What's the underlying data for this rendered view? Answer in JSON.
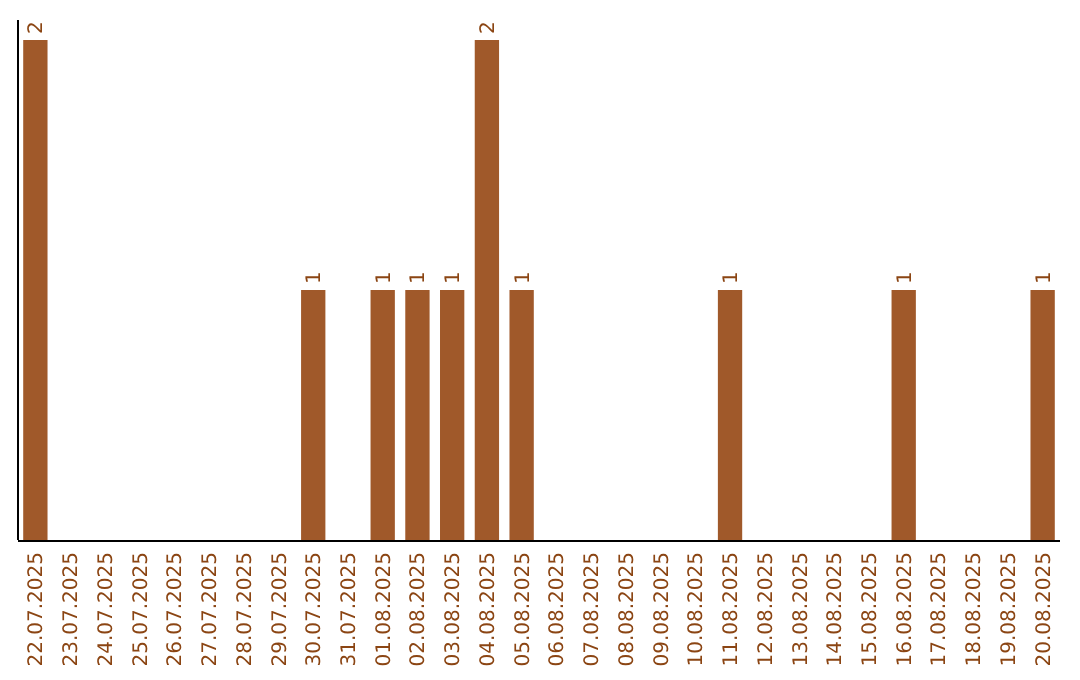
{
  "chart_data": {
    "type": "bar",
    "categories": [
      "22.07.2025",
      "23.07.2025",
      "24.07.2025",
      "25.07.2025",
      "26.07.2025",
      "27.07.2025",
      "28.07.2025",
      "29.07.2025",
      "30.07.2025",
      "31.07.2025",
      "01.08.2025",
      "02.08.2025",
      "03.08.2025",
      "04.08.2025",
      "05.08.2025",
      "06.08.2025",
      "07.08.2025",
      "08.08.2025",
      "09.08.2025",
      "10.08.2025",
      "11.08.2025",
      "12.08.2025",
      "13.08.2025",
      "14.08.2025",
      "15.08.2025",
      "16.08.2025",
      "17.08.2025",
      "18.08.2025",
      "19.08.2025",
      "20.08.2025"
    ],
    "values": [
      2,
      0,
      0,
      0,
      0,
      0,
      0,
      0,
      1,
      0,
      1,
      1,
      1,
      2,
      1,
      0,
      0,
      0,
      0,
      0,
      1,
      0,
      0,
      0,
      0,
      1,
      0,
      0,
      0,
      1
    ],
    "value_labels": [
      "2",
      null,
      null,
      null,
      null,
      null,
      null,
      null,
      "1",
      null,
      "1",
      "1",
      "1",
      "2",
      "1",
      null,
      null,
      null,
      null,
      null,
      "1",
      null,
      null,
      null,
      null,
      "1",
      null,
      null,
      null,
      "1"
    ],
    "color": "#a0592a",
    "tick_labels": "x"
  }
}
